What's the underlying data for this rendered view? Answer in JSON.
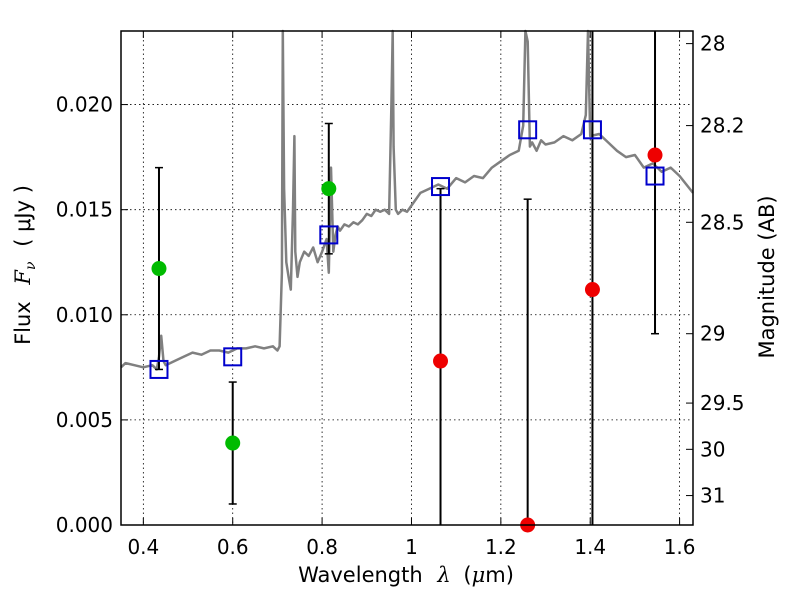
{
  "chart_data": {
    "type": "scatter",
    "title": "",
    "xlabel": {
      "text": "Wavelength",
      "symbol": "λ",
      "unit_open": "(",
      "unit_mu": "μ",
      "unit_m": "m",
      "unit_close": ")"
    },
    "ylabel": {
      "text": "Flux",
      "symbol": "F",
      "subscript": "ν",
      "unit": "( μJy )"
    },
    "ylabel_right": "Magnitude (AB)",
    "xlim": [
      0.35,
      1.63
    ],
    "ylim": [
      0.0,
      0.0235
    ],
    "x_ticks": [
      0.4,
      0.6,
      0.8,
      1.0,
      1.2,
      1.4,
      1.6
    ],
    "x_tick_labels": [
      "0.4",
      "0.6",
      "0.8",
      "1",
      "1.2",
      "1.4",
      "1.6"
    ],
    "y_ticks": [
      0.0,
      0.005,
      0.01,
      0.015,
      0.02
    ],
    "y_tick_labels": [
      "0.000",
      "0.005",
      "0.010",
      "0.015",
      "0.020"
    ],
    "right_ticks": [
      {
        "label": "28",
        "flux": 0.0229
      },
      {
        "label": "28.2",
        "flux": 0.019
      },
      {
        "label": "28.5",
        "flux": 0.0144
      },
      {
        "label": "29",
        "flux": 0.0091
      },
      {
        "label": "29.5",
        "flux": 0.0058
      },
      {
        "label": "30",
        "flux": 0.0036
      },
      {
        "label": "31",
        "flux": 0.0014
      }
    ],
    "grid": true,
    "colors": {
      "model": "#808080",
      "model_points": "#0000cc",
      "green_points": "#00bb00",
      "red_points": "#ee0000",
      "errorbar": "#000000"
    },
    "series": [
      {
        "style": "line",
        "color": "#808080",
        "x": [
          0.35,
          0.36,
          0.38,
          0.4,
          0.42,
          0.43,
          0.435,
          0.44,
          0.445,
          0.45,
          0.47,
          0.49,
          0.51,
          0.53,
          0.55,
          0.57,
          0.59,
          0.61,
          0.63,
          0.65,
          0.67,
          0.69,
          0.7,
          0.705,
          0.71,
          0.712,
          0.715,
          0.72,
          0.725,
          0.73,
          0.735,
          0.738,
          0.74,
          0.745,
          0.75,
          0.76,
          0.77,
          0.78,
          0.79,
          0.8,
          0.81,
          0.815,
          0.82,
          0.825,
          0.83,
          0.835,
          0.84,
          0.85,
          0.86,
          0.87,
          0.88,
          0.89,
          0.9,
          0.91,
          0.92,
          0.93,
          0.94,
          0.95,
          0.955,
          0.958,
          0.96,
          0.965,
          0.97,
          0.98,
          0.99,
          1.0,
          1.02,
          1.04,
          1.06,
          1.08,
          1.1,
          1.12,
          1.14,
          1.16,
          1.18,
          1.2,
          1.22,
          1.24,
          1.25,
          1.255,
          1.26,
          1.265,
          1.27,
          1.28,
          1.29,
          1.3,
          1.32,
          1.34,
          1.36,
          1.38,
          1.39,
          1.395,
          1.4,
          1.42,
          1.44,
          1.46,
          1.48,
          1.5,
          1.52,
          1.54,
          1.56,
          1.58,
          1.6,
          1.63
        ],
        "y": [
          0.0075,
          0.0077,
          0.0076,
          0.0075,
          0.0076,
          0.0074,
          0.008,
          0.009,
          0.0078,
          0.0076,
          0.0078,
          0.008,
          0.0082,
          0.0081,
          0.0083,
          0.0083,
          0.0082,
          0.0084,
          0.0084,
          0.0085,
          0.0084,
          0.0085,
          0.0083,
          0.0085,
          0.012,
          0.024,
          0.016,
          0.0125,
          0.0118,
          0.0112,
          0.015,
          0.0185,
          0.013,
          0.0118,
          0.0125,
          0.013,
          0.0128,
          0.0132,
          0.0125,
          0.013,
          0.0136,
          0.012,
          0.017,
          0.013,
          0.0138,
          0.0142,
          0.014,
          0.0143,
          0.0142,
          0.0144,
          0.0143,
          0.0145,
          0.0148,
          0.0147,
          0.015,
          0.0149,
          0.015,
          0.0148,
          0.02,
          0.024,
          0.018,
          0.015,
          0.0148,
          0.015,
          0.0149,
          0.0152,
          0.0158,
          0.016,
          0.0162,
          0.016,
          0.0165,
          0.0163,
          0.0166,
          0.0165,
          0.017,
          0.0173,
          0.0176,
          0.0178,
          0.019,
          0.024,
          0.023,
          0.018,
          0.0182,
          0.0178,
          0.0183,
          0.0181,
          0.0182,
          0.0185,
          0.0183,
          0.0186,
          0.0195,
          0.024,
          0.0185,
          0.0186,
          0.0182,
          0.0178,
          0.0175,
          0.0176,
          0.017,
          0.0172,
          0.0168,
          0.017,
          0.0166,
          0.0158
        ]
      },
      {
        "style": "open-square",
        "color": "#0000cc",
        "x": [
          0.435,
          0.6,
          0.815,
          1.065,
          1.26,
          1.405,
          1.545
        ],
        "y": [
          0.0074,
          0.008,
          0.0138,
          0.0161,
          0.0188,
          0.0188,
          0.0166
        ]
      },
      {
        "style": "filled-circle",
        "color": "#00bb00",
        "x": [
          0.435,
          0.6,
          0.815
        ],
        "y": [
          0.0122,
          0.0039,
          0.016
        ],
        "yerr_low": [
          0.0048,
          0.0029,
          0.0031
        ],
        "yerr_high": [
          0.0048,
          0.0029,
          0.0031
        ]
      },
      {
        "style": "filled-circle",
        "color": "#ee0000",
        "x": [
          1.065,
          1.26,
          1.405,
          1.545
        ],
        "y": [
          0.0078,
          0.0,
          0.0112,
          0.0176
        ],
        "yerr_low": [
          0.0078,
          0.0,
          0.0112,
          0.0085
        ],
        "yerr_high": [
          0.0082,
          0.0155,
          0.0123,
          0.0059
        ]
      }
    ]
  }
}
